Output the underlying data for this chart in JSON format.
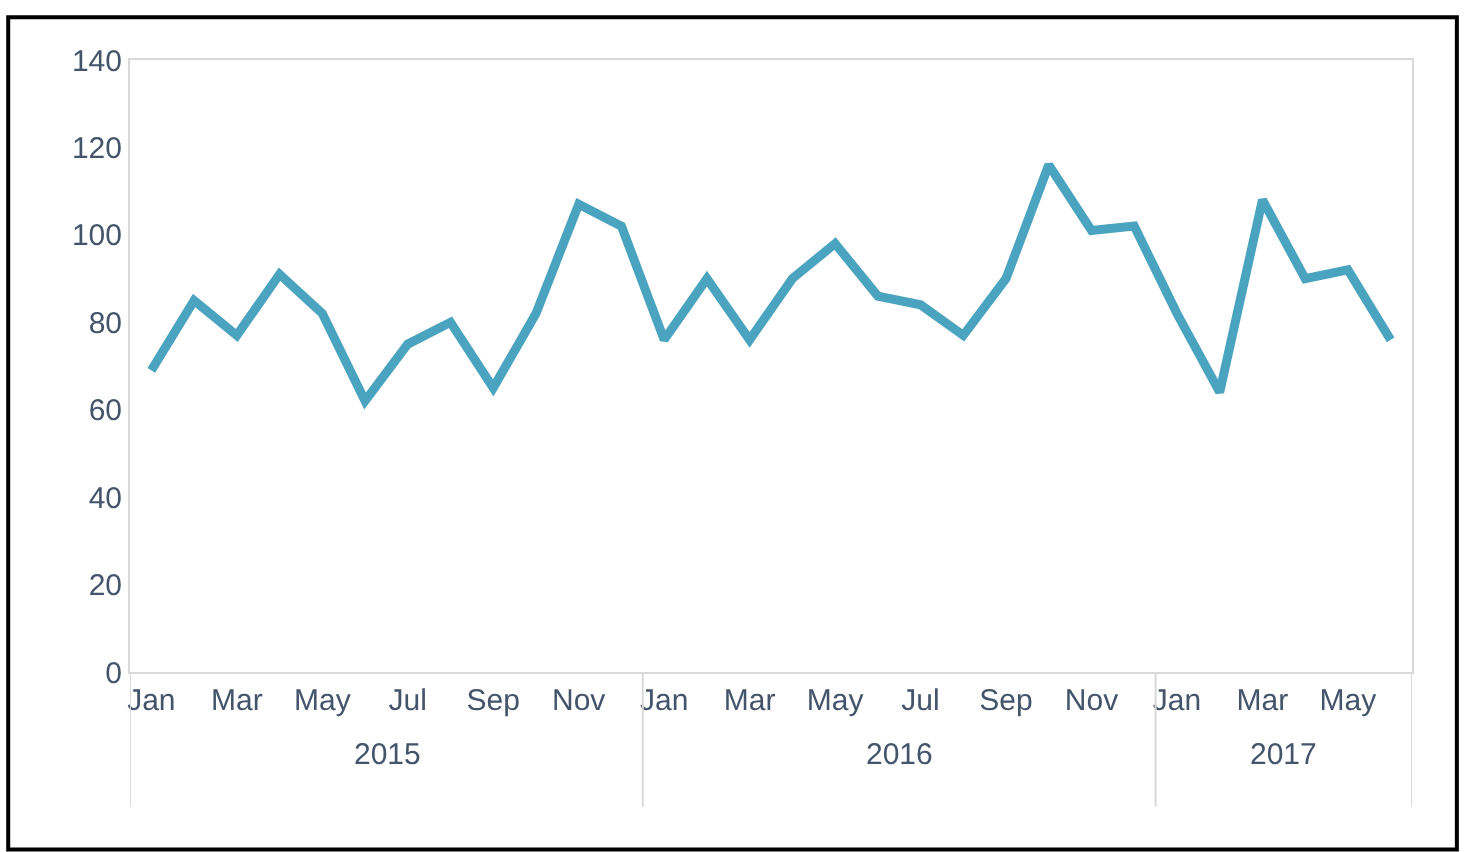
{
  "chart_data": {
    "type": "line",
    "categories": [
      "Jan",
      null,
      "Mar",
      null,
      "May",
      null,
      "Jul",
      null,
      "Sep",
      null,
      "Nov",
      null,
      "Jan",
      null,
      "Mar",
      null,
      "May",
      null,
      "Jul",
      null,
      "Sep",
      null,
      "Nov",
      null,
      "Jan",
      null,
      "Mar",
      null,
      "May",
      null
    ],
    "series": [
      {
        "color": "#4aa3bf",
        "values": [
          69,
          85,
          77,
          91,
          82,
          62,
          75,
          80,
          65,
          82,
          107,
          102,
          76,
          90,
          76,
          90,
          98,
          86,
          84,
          77,
          90,
          116,
          101,
          102,
          82,
          64,
          108,
          90,
          92,
          76
        ]
      }
    ],
    "ylim": [
      0,
      140
    ],
    "yticks": [
      0,
      20,
      40,
      60,
      80,
      100,
      120,
      140
    ],
    "grid": false,
    "marker": "none",
    "line_style": "solid",
    "annotations": [
      "2015",
      "2016",
      "2017"
    ]
  }
}
